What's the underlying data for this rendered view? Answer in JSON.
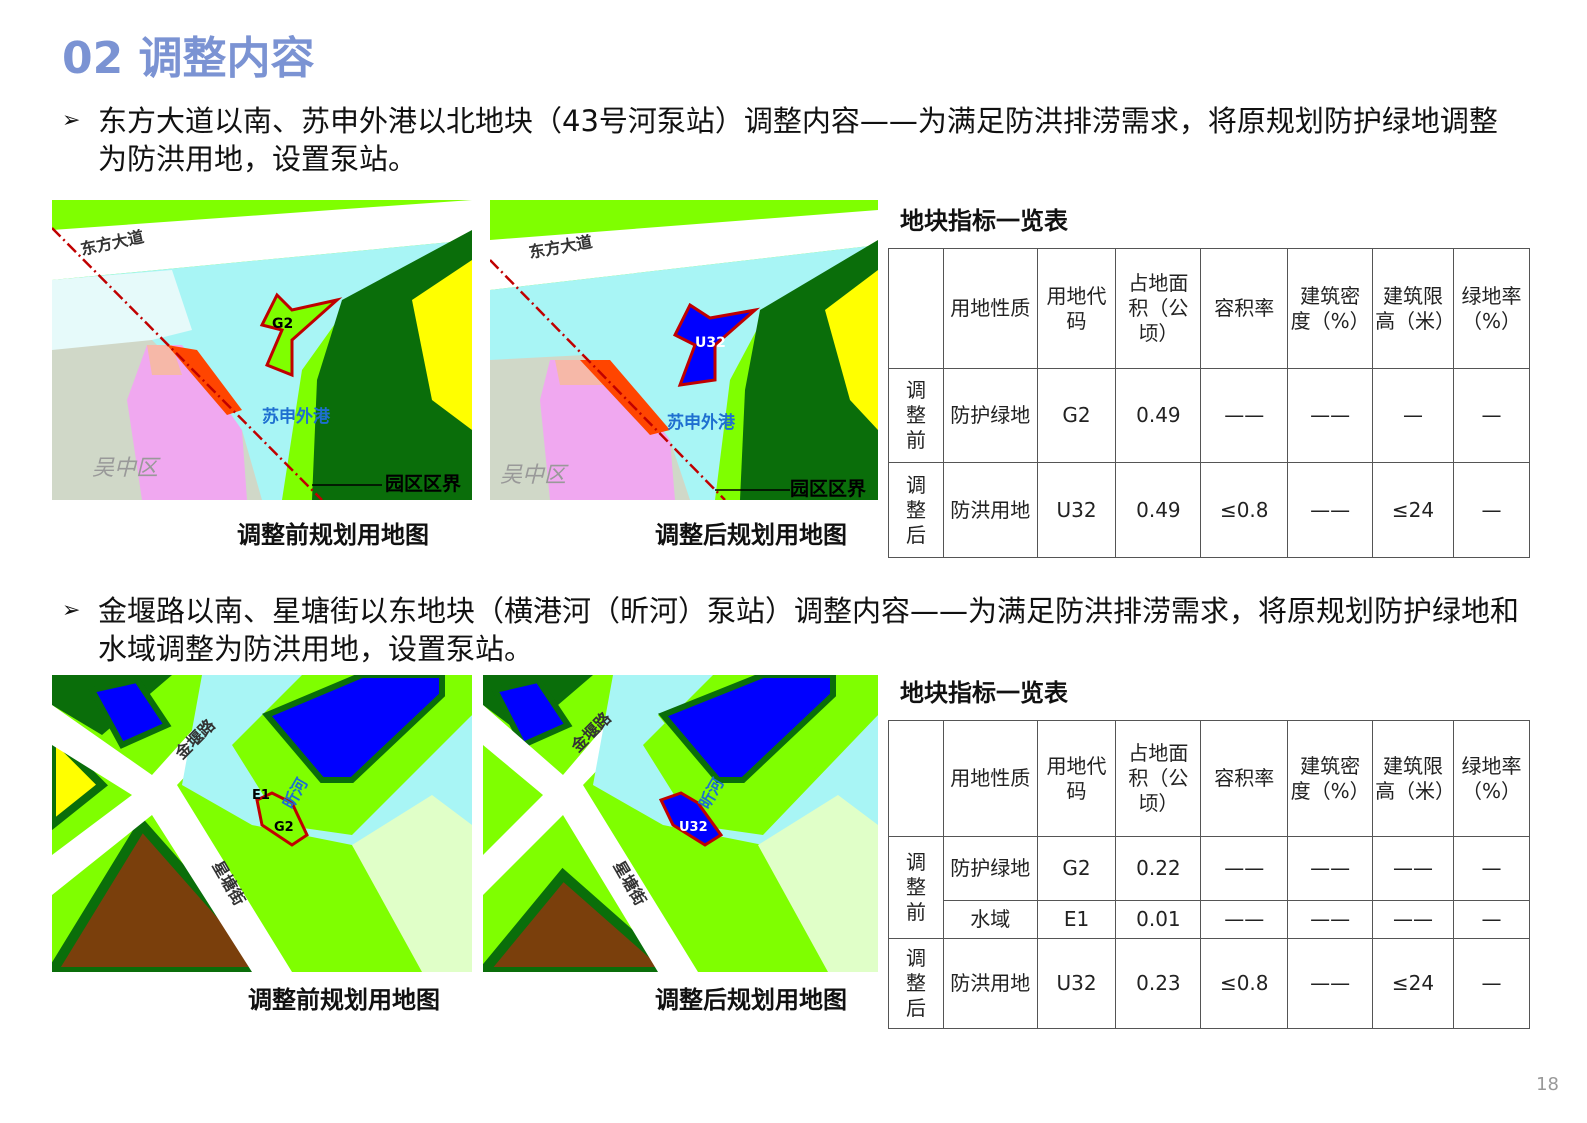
{
  "title": "02 调整内容",
  "section1": {
    "bullet": "东方大道以南、苏申外港以北地块（43号河泵站）调整内容——为满足防洪排涝需求，将原规划防护绿地调整为防洪用地，设置泵站。",
    "map_before": {
      "road": "东方大道",
      "river": "苏申外港",
      "district": "吴中区",
      "boundary": "园区区界",
      "plot": "G2",
      "caption": "调整前规划用地图"
    },
    "map_after": {
      "road": "东方大道",
      "river": "苏申外港",
      "district": "吴中区",
      "boundary": "园区区界",
      "plot": "U32",
      "caption": "调整后规划用地图"
    },
    "table": {
      "title": "地块指标一览表",
      "headers": [
        "",
        "用地性质",
        "用地代码",
        "占地面积（公顷）",
        "容积率",
        "建筑密度（%）",
        "建筑限高（米）",
        "绿地率（%）"
      ],
      "rows": [
        {
          "group": "调整前",
          "cells": [
            "防护绿地",
            "G2",
            "0.49",
            "——",
            "——",
            "—",
            "—"
          ]
        },
        {
          "group": "调整后",
          "cells": [
            "防洪用地",
            "U32",
            "0.49",
            "≤0.8",
            "——",
            "≤24",
            "—"
          ]
        }
      ]
    }
  },
  "section2": {
    "bullet": "金堰路以南、星塘街以东地块（横港河（昕河）泵站）调整内容——为满足防洪排涝需求，将原规划防护绿地和水域调整为防洪用地，设置泵站。",
    "map_before": {
      "road1": "金堰路",
      "road2": "星塘街",
      "river": "昕河",
      "plot1": "E1",
      "plot2": "G2",
      "caption": "调整前规划用地图"
    },
    "map_after": {
      "road1": "金堰路",
      "road2": "星塘街",
      "river": "昕河",
      "plot": "U32",
      "caption": "调整后规划用地图"
    },
    "table": {
      "title": "地块指标一览表",
      "headers": [
        "",
        "用地性质",
        "用地代码",
        "占地面积（公顷）",
        "容积率",
        "建筑密度（%）",
        "建筑限高（米）",
        "绿地率（%）"
      ],
      "rows": [
        {
          "group": "调整前",
          "cells": [
            "防护绿地",
            "G2",
            "0.22",
            "——",
            "——",
            "——",
            "—"
          ]
        },
        {
          "group": "",
          "cells": [
            "水域",
            "E1",
            "0.01",
            "——",
            "——",
            "——",
            "—"
          ]
        },
        {
          "group": "调整后",
          "cells": [
            "防洪用地",
            "U32",
            "0.23",
            "≤0.8",
            "——",
            "≤24",
            "—"
          ]
        }
      ]
    }
  },
  "page_number": "18",
  "colors": {
    "title": "#7b93d3",
    "green": "#7fff00",
    "dark_green": "#0a6e0a",
    "water": "#a8f5f5",
    "flood_use": "#0000ff",
    "yellow": "#ffff00",
    "brown": "#7a3f0c",
    "boundary": "#c00000"
  }
}
